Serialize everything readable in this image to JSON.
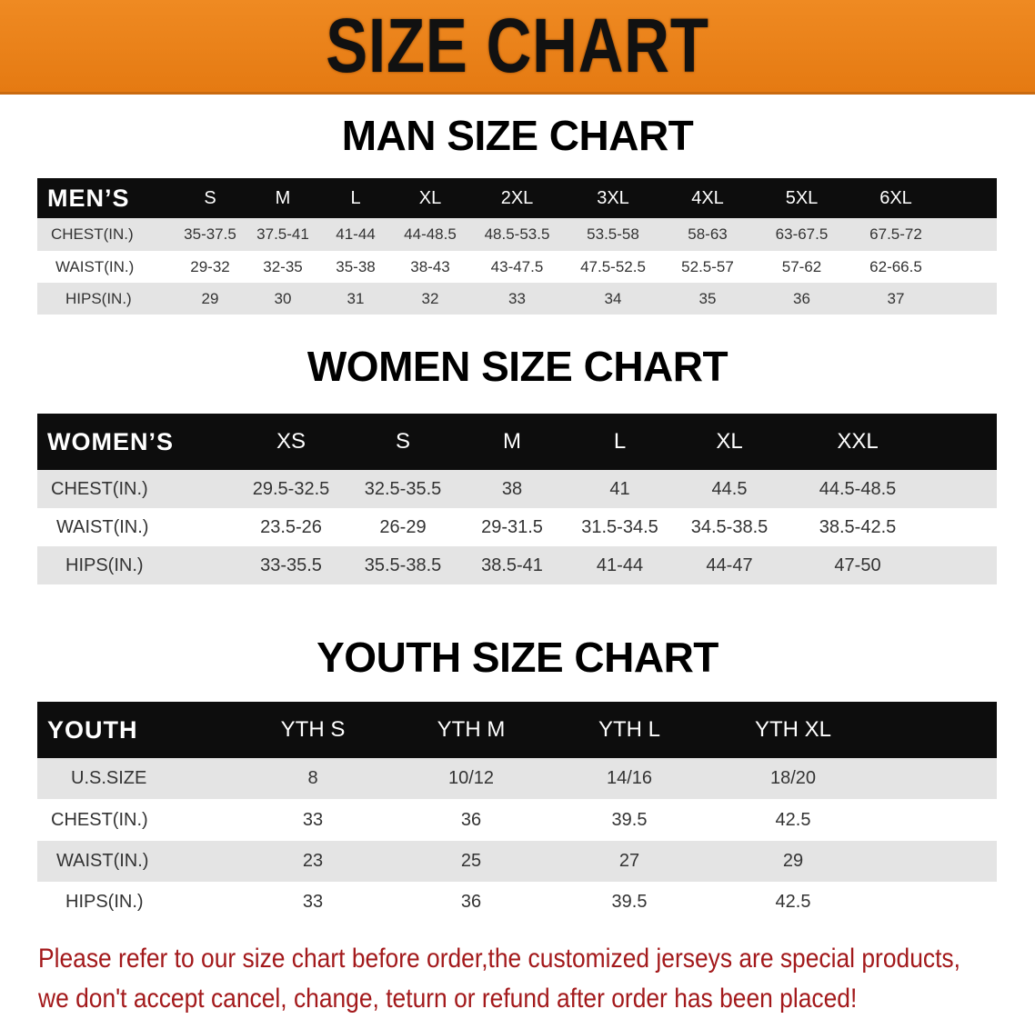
{
  "banner_title": "SIZE CHART",
  "men": {
    "title": "MAN SIZE CHART",
    "header": [
      "MEN’S",
      "S",
      "M",
      "L",
      "XL",
      "2XL",
      "3XL",
      "4XL",
      "5XL",
      "6XL"
    ],
    "rows": [
      [
        "CHEST(IN.)",
        "35-37.5",
        "37.5-41",
        "41-44",
        "44-48.5",
        "48.5-53.5",
        "53.5-58",
        "58-63",
        "63-67.5",
        "67.5-72"
      ],
      [
        "WAIST(IN.)",
        "29-32",
        "32-35",
        "35-38",
        "38-43",
        "43-47.5",
        "47.5-52.5",
        "52.5-57",
        "57-62",
        "62-66.5"
      ],
      [
        "HIPS(IN.)",
        "29",
        "30",
        "31",
        "32",
        "33",
        "34",
        "35",
        "36",
        "37"
      ]
    ]
  },
  "women": {
    "title": "WOMEN SIZE CHART",
    "header": [
      "WOMEN’S",
      "XS",
      "S",
      "M",
      "L",
      "XL",
      "XXL"
    ],
    "rows": [
      [
        "CHEST(IN.)",
        "29.5-32.5",
        "32.5-35.5",
        "38",
        "41",
        "44.5",
        "44.5-48.5"
      ],
      [
        "WAIST(IN.)",
        "23.5-26",
        "26-29",
        "29-31.5",
        "31.5-34.5",
        "34.5-38.5",
        "38.5-42.5"
      ],
      [
        "HIPS(IN.)",
        "33-35.5",
        "35.5-38.5",
        "38.5-41",
        "41-44",
        "44-47",
        "47-50"
      ]
    ]
  },
  "youth": {
    "title": "YOUTH SIZE CHART",
    "header": [
      "YOUTH",
      "YTH S",
      "YTH M",
      "YTH L",
      "YTH XL"
    ],
    "rows": [
      [
        "U.S.SIZE",
        "8",
        "10/12",
        "14/16",
        "18/20"
      ],
      [
        "CHEST(IN.)",
        "33",
        "36",
        "39.5",
        "42.5"
      ],
      [
        "WAIST(IN.)",
        "23",
        "25",
        "27",
        "29"
      ],
      [
        "HIPS(IN.)",
        "33",
        "36",
        "39.5",
        "42.5"
      ]
    ]
  },
  "notice": [
    "Please refer to our size chart before order,the customized jerseys are special products,",
    "we don't accept cancel, change, teturn or refund after order has been placed!"
  ],
  "colors": {
    "banner": "#e98118",
    "header_row": "#0d0d0d",
    "stripe": "#e4e4e4",
    "notice": "#a3191b"
  }
}
